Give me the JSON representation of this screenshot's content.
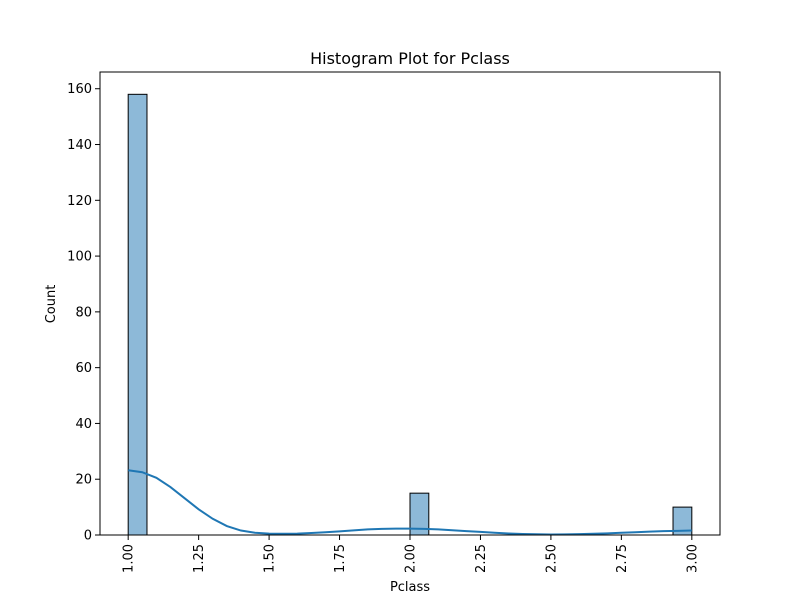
{
  "chart_data": {
    "type": "bar",
    "title": "Histogram Plot for Pclass",
    "xlabel": "Pclass",
    "ylabel": "Count",
    "xlim": [
      0.9,
      3.1
    ],
    "ylim": [
      0,
      166
    ],
    "x_ticks": [
      1.0,
      1.25,
      1.5,
      1.75,
      2.0,
      2.25,
      2.5,
      2.75,
      3.0
    ],
    "x_tick_labels": [
      "1.00",
      "1.25",
      "1.50",
      "1.75",
      "2.00",
      "2.25",
      "2.50",
      "2.75",
      "3.00"
    ],
    "y_ticks": [
      0,
      20,
      40,
      60,
      80,
      100,
      120,
      140,
      160
    ],
    "y_tick_labels": [
      "0",
      "20",
      "40",
      "60",
      "80",
      "100",
      "120",
      "140",
      "160"
    ],
    "bins": [
      {
        "x0": 1.0,
        "x1": 1.0667,
        "count": 158
      },
      {
        "x0": 2.0,
        "x1": 2.0667,
        "count": 15
      },
      {
        "x0": 2.9333,
        "x1": 3.0,
        "count": 10
      }
    ],
    "kde": {
      "x": [
        1.0,
        1.05,
        1.1,
        1.15,
        1.2,
        1.25,
        1.3,
        1.35,
        1.4,
        1.45,
        1.5,
        1.55,
        1.6,
        1.65,
        1.7,
        1.75,
        1.8,
        1.85,
        1.9,
        1.95,
        2.0,
        2.05,
        2.1,
        2.15,
        2.2,
        2.25,
        2.3,
        2.35,
        2.4,
        2.45,
        2.5,
        2.55,
        2.6,
        2.65,
        2.7,
        2.75,
        2.8,
        2.85,
        2.9,
        2.95,
        3.0
      ],
      "y": [
        23.2,
        22.5,
        20.5,
        17.2,
        13.2,
        9.2,
        5.8,
        3.2,
        1.6,
        0.8,
        0.5,
        0.45,
        0.5,
        0.7,
        1.0,
        1.3,
        1.65,
        2.0,
        2.2,
        2.3,
        2.3,
        2.2,
        2.0,
        1.7,
        1.4,
        1.1,
        0.8,
        0.55,
        0.35,
        0.25,
        0.2,
        0.22,
        0.3,
        0.45,
        0.6,
        0.8,
        1.0,
        1.2,
        1.4,
        1.5,
        1.6
      ]
    },
    "bar_color": "#8db9d8",
    "bar_edge_color": "#000000",
    "kde_color": "#1f77b4",
    "grid": false,
    "legend": "none"
  }
}
